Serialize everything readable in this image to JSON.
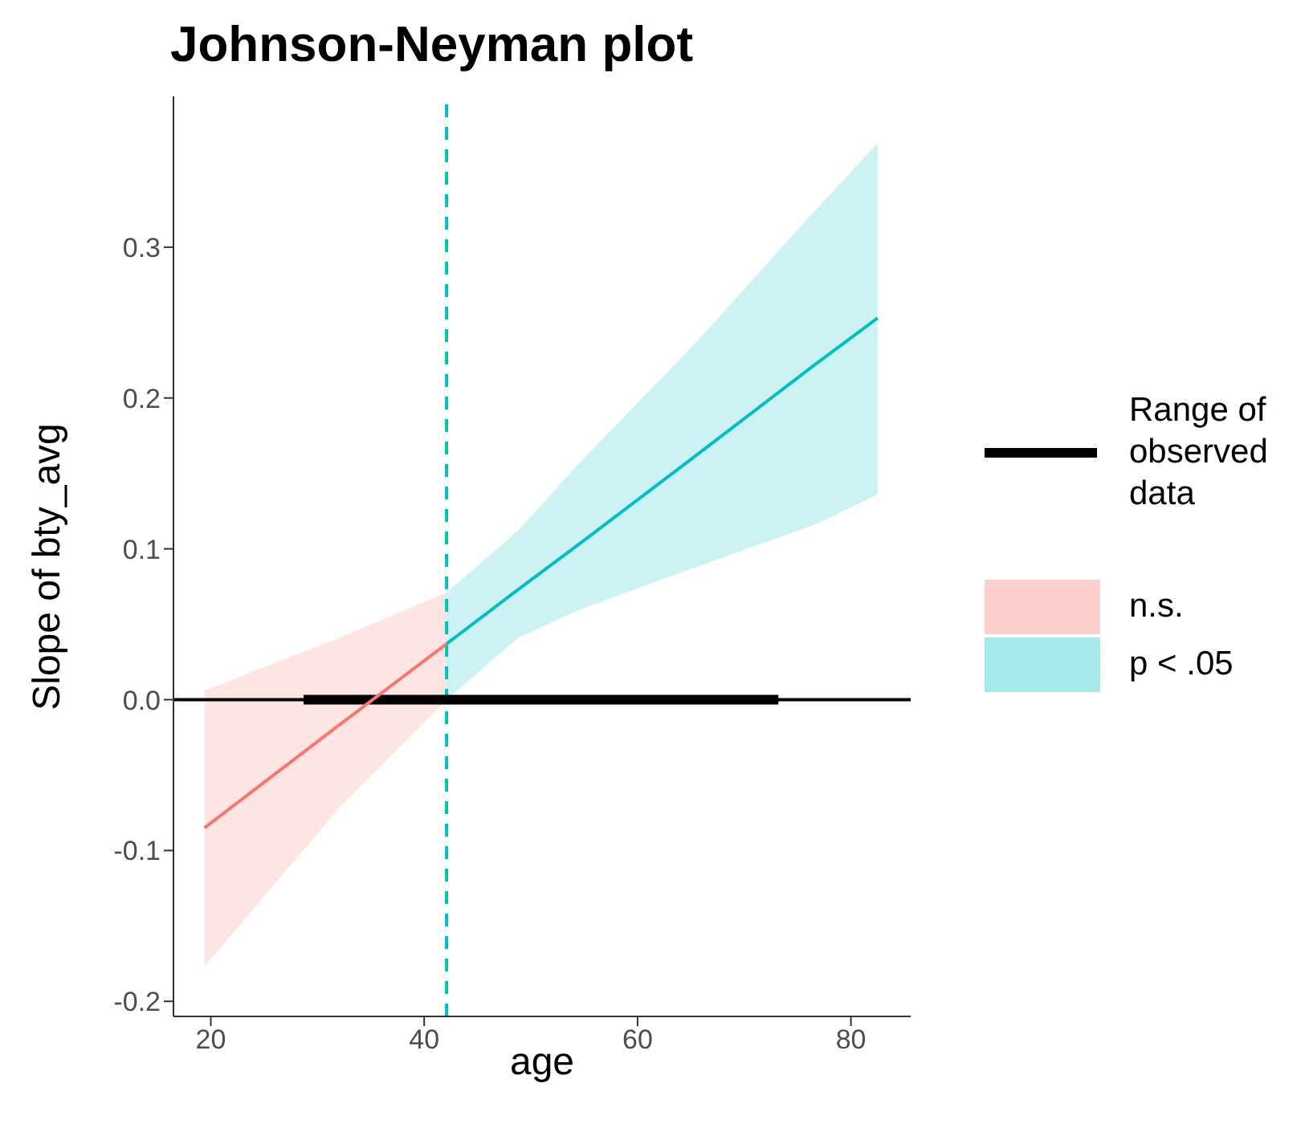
{
  "chart_data": {
    "type": "line",
    "title": "Johnson-Neyman plot",
    "xlabel": "age",
    "ylabel": "Slope of bty_avg",
    "xlim": [
      16.5,
      85.6
    ],
    "xticks": [
      20,
      40,
      60,
      80
    ],
    "ylim": [
      -0.21,
      0.4
    ],
    "yticks": [
      {
        "value": -0.2,
        "label": "-0.2"
      },
      {
        "value": -0.1,
        "label": "-0.1"
      },
      {
        "value": 0,
        "label": "0.0"
      },
      {
        "value": 0.1,
        "label": "0.1"
      },
      {
        "value": 0.2,
        "label": "0.2"
      },
      {
        "value": 0.3,
        "label": "0.3"
      }
    ],
    "series": [
      {
        "name": "Range of observed data",
        "color": "#000000",
        "x": [
          28.7,
          73.2
        ],
        "values": [
          0,
          0
        ]
      },
      {
        "name": "n.s.",
        "color": "#f8766d",
        "x": [
          19.4,
          32,
          42.1
        ],
        "values": [
          -0.085,
          -0.017,
          0.037
        ],
        "lower": [
          -0.177,
          -0.072,
          0
        ],
        "upper": [
          0.006,
          0.041,
          0.071
        ]
      },
      {
        "name": "p < .05",
        "color": "#00bfc4",
        "x": [
          42.1,
          48.8,
          54.3,
          65.5,
          76.6,
          82.5
        ],
        "values": [
          0.037,
          0.073,
          0.102,
          0.162,
          0.222,
          0.253
        ],
        "lower": [
          0,
          0.041,
          0.059,
          0.088,
          0.116,
          0.136
        ],
        "upper": [
          0.071,
          0.112,
          0.155,
          0.237,
          0.324,
          0.369
        ]
      }
    ],
    "ref_lines": [
      {
        "axis": "y",
        "value": 0,
        "color": "#000000"
      },
      {
        "axis": "x",
        "value": 42.1,
        "color": "#00bfc4",
        "line_style": "dashed"
      }
    ],
    "grid": false,
    "legend": "right",
    "marker": "none",
    "line_style": "solid"
  }
}
